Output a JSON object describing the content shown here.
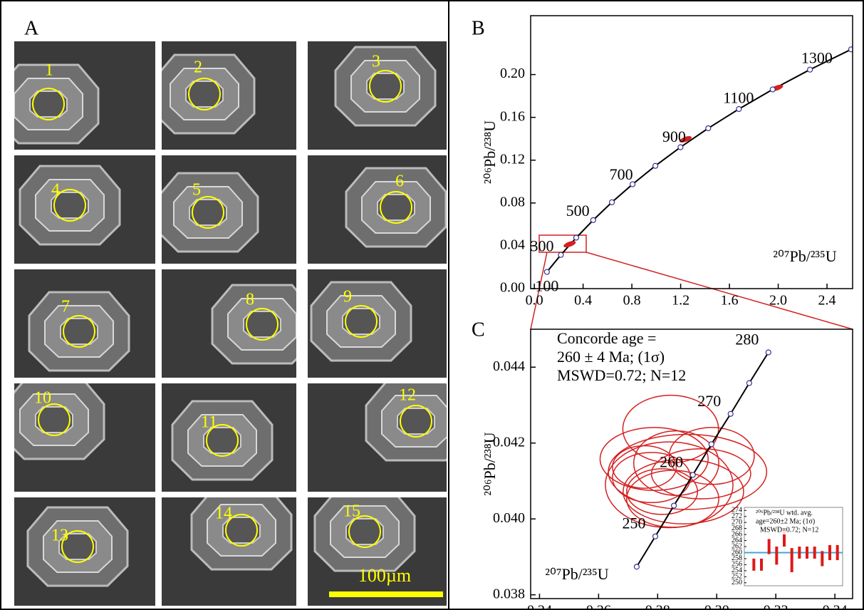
{
  "panel_a": {
    "label": "A",
    "grains": [
      "1",
      "2",
      "3",
      "4",
      "5",
      "6",
      "7",
      "8",
      "9",
      "10",
      "11",
      "12",
      "13",
      "14",
      "15"
    ],
    "scale_bar": "100µm"
  },
  "chart_data": [
    {
      "type": "concordia",
      "panel_label": "B",
      "x_label": "²⁰⁷Pb/²³⁵U",
      "y_label": "²⁰⁶Pb/²³⁸U",
      "ages": [
        100,
        200,
        300,
        400,
        500,
        600,
        700,
        800,
        900,
        1000,
        1100,
        1200,
        1300
      ],
      "x": [
        0.1035,
        0.2177,
        0.3437,
        0.4828,
        0.6363,
        0.8056,
        0.9925,
        1.1987,
        1.4262,
        1.6774,
        1.9546,
        2.2604,
        2.5979
      ],
      "y": [
        0.0156,
        0.0315,
        0.0476,
        0.064,
        0.0807,
        0.0975,
        0.1147,
        0.1321,
        0.1498,
        0.1678,
        0.1861,
        0.2046,
        0.2235
      ],
      "age_labels": [
        100,
        300,
        500,
        700,
        900,
        1100,
        1300
      ],
      "samples": {
        "x": [
          0.29,
          1.24,
          1.99
        ],
        "y": [
          0.0415,
          0.1395,
          0.1875
        ]
      },
      "color": "#d42020",
      "xlim": [
        -0.03,
        2.61
      ],
      "ylim": [
        0,
        0.255
      ],
      "xticks": [
        {
          "value": 0,
          "label": "0.0"
        },
        0.4,
        0.8,
        1.2,
        1.6,
        {
          "value": 2,
          "label": "2.0"
        },
        2.4
      ],
      "yticks": [
        {
          "value": 0,
          "label": "0.00"
        },
        0.04,
        0.08,
        0.12,
        0.16,
        {
          "value": 0.2,
          "label": "0.20"
        }
      ]
    },
    {
      "type": "concordia",
      "panel_label": "C",
      "x_label": "²⁰⁷Pb/²³⁵U",
      "y_label": "²⁰⁶Pb/²³⁸U",
      "annotation": [
        "Concorde age =",
        "260 ± 4 Ma; (1σ)",
        "MSWD=0.72; N=12"
      ],
      "ages": [
        245,
        250,
        255,
        260,
        265,
        270,
        275,
        280
      ],
      "x": [
        0.2729,
        0.2792,
        0.2855,
        0.2919,
        0.2982,
        0.3047,
        0.311,
        0.3175
      ],
      "y": [
        0.03874,
        0.03954,
        0.04035,
        0.04116,
        0.04197,
        0.04277,
        0.04358,
        0.04439
      ],
      "age_labels": [
        250,
        260,
        270,
        280
      ],
      "ellipses": {
        "x": [
          0.2844,
          0.2788,
          0.2901,
          0.2839,
          0.2863,
          0.2779,
          0.2947,
          0.2815,
          0.2887,
          0.2983,
          0.2755,
          0.2851
        ],
        "y": [
          0.04237,
          0.04158,
          0.04124,
          0.0409,
          0.04147,
          0.04109,
          0.04119,
          0.04072,
          0.04072,
          0.04166,
          0.04137,
          0.04053
        ],
        "x_err": [
          0.0162,
          0.0183,
          0.0268,
          0.0216,
          0.0144,
          0.0132,
          0.0168,
          0.012,
          0.0204,
          0.0144,
          0.0108,
          0.0156
        ],
        "y_err": [
          0.00089,
          0.00083,
          0.00099,
          0.00113,
          0.00085,
          0.00066,
          0.00066,
          0.0006,
          0.00085,
          0.00075,
          0.00056,
          0.00075
        ]
      },
      "color": "#d42020",
      "xlim": [
        0.237,
        0.346
      ],
      "ylim": [
        0.0379,
        0.045
      ],
      "xticks": [
        0.24,
        0.26,
        0.28,
        {
          "value": 0.3,
          "label": "0.30"
        },
        0.32,
        0.34
      ],
      "yticks": [
        0.038,
        {
          "value": 0.04,
          "label": "0.040"
        },
        0.042,
        0.044
      ]
    },
    {
      "type": "weighted_average",
      "title_lines": [
        "²⁰⁶Pb/²³⁸U wtd. avg.",
        "age=260±2 Ma; (1σ)",
        "MSWD=0.72; N=12"
      ],
      "values": [
        256,
        256,
        262,
        259,
        265,
        257.5,
        260,
        260,
        260,
        258,
        260,
        260
      ],
      "errors": [
        2,
        2,
        2.5,
        3,
        3,
        4,
        2,
        2,
        2,
        2.5,
        2.5,
        2.5
      ],
      "mean": 260,
      "color": "#e01818",
      "mean_color": "#3fa7d6",
      "ylim": [
        249,
        275
      ],
      "yticks": [
        250,
        252,
        254,
        256,
        258,
        260,
        262,
        264,
        266,
        268,
        270,
        272,
        274
      ]
    }
  ]
}
